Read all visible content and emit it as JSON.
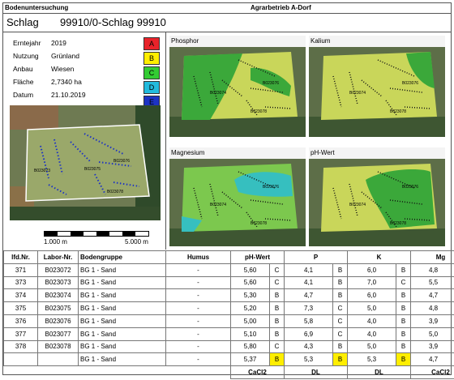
{
  "header": {
    "left": "Bodenuntersuchung",
    "center": "Agrarbetrieb A-Dorf"
  },
  "schlag": {
    "label": "Schlag",
    "value": "99910/0-Schlag 99910"
  },
  "info": [
    {
      "key": "Erntejahr",
      "value": "2019"
    },
    {
      "key": "Nutzung",
      "value": "Grünland"
    },
    {
      "key": "Anbau",
      "value": "Wiesen"
    },
    {
      "key": "Fläche",
      "value": "2,7340 ha"
    },
    {
      "key": "Datum",
      "value": "21.10.2019"
    }
  ],
  "legend": [
    {
      "label": "A",
      "color": "#e8232a"
    },
    {
      "label": "B",
      "color": "#ffee00"
    },
    {
      "label": "C",
      "color": "#33cc33"
    },
    {
      "label": "D",
      "color": "#22bbdd"
    },
    {
      "label": "E",
      "color": "#1d33c4"
    }
  ],
  "maps": {
    "phosphor": "Phosphor",
    "kalium": "Kalium",
    "magnesium": "Magnesium",
    "ph": "pH-Wert",
    "sample_labels": [
      "B023071",
      "B023072",
      "B023073",
      "B023074",
      "B023075",
      "B023076",
      "B023077",
      "B023078"
    ]
  },
  "scale": {
    "left": "1.000 m",
    "right": "5.000 m"
  },
  "table": {
    "headers": [
      "lfd.Nr.",
      "Labor-Nr.",
      "Bodengruppe",
      "Humus",
      "pH-Wert",
      "P",
      "K",
      "Mg"
    ],
    "rows": [
      {
        "nr": "371",
        "labor": "B023072",
        "gruppe": "BG 1 - Sand",
        "humus": "-",
        "ph": "5,60",
        "ph_c": "C",
        "p": "4,1",
        "p_c": "B",
        "k": "6,0",
        "k_c": "B",
        "mg": "4,8",
        "mg_c": "C"
      },
      {
        "nr": "373",
        "labor": "B023073",
        "gruppe": "BG 1 - Sand",
        "humus": "-",
        "ph": "5,60",
        "ph_c": "C",
        "p": "4,1",
        "p_c": "B",
        "k": "7,0",
        "k_c": "C",
        "mg": "5,5",
        "mg_c": "D"
      },
      {
        "nr": "374",
        "labor": "B023074",
        "gruppe": "BG 1 - Sand",
        "humus": "-",
        "ph": "5,30",
        "ph_c": "B",
        "p": "4,7",
        "p_c": "B",
        "k": "6,0",
        "k_c": "B",
        "mg": "4,7",
        "mg_c": "C"
      },
      {
        "nr": "375",
        "labor": "B023075",
        "gruppe": "BG 1 - Sand",
        "humus": "-",
        "ph": "5,20",
        "ph_c": "B",
        "p": "7,3",
        "p_c": "C",
        "k": "5,0",
        "k_c": "B",
        "mg": "4,8",
        "mg_c": "C"
      },
      {
        "nr": "376",
        "labor": "B023076",
        "gruppe": "BG 1 - Sand",
        "humus": "-",
        "ph": "5,00",
        "ph_c": "B",
        "p": "5,8",
        "p_c": "C",
        "k": "4,0",
        "k_c": "B",
        "mg": "3,9",
        "mg_c": "C"
      },
      {
        "nr": "377",
        "labor": "B023077",
        "gruppe": "BG 1 - Sand",
        "humus": "-",
        "ph": "5,10",
        "ph_c": "B",
        "p": "6,9",
        "p_c": "C",
        "k": "4,0",
        "k_c": "B",
        "mg": "5,0",
        "mg_c": "C"
      },
      {
        "nr": "378",
        "labor": "B023078",
        "gruppe": "BG 1 - Sand",
        "humus": "-",
        "ph": "5,80",
        "ph_c": "C",
        "p": "4,3",
        "p_c": "B",
        "k": "5,0",
        "k_c": "B",
        "mg": "3,9",
        "mg_c": "C"
      }
    ],
    "summary": {
      "gruppe": "BG 1 - Sand",
      "humus": "-",
      "ph": "5,37",
      "ph_c": "B",
      "p": "5,3",
      "p_c": "B",
      "k": "5,3",
      "k_c": "B",
      "mg": "4,7",
      "mg_c": "C"
    },
    "footer": [
      "CaCl2",
      "DL",
      "DL",
      "CaCl2"
    ]
  }
}
